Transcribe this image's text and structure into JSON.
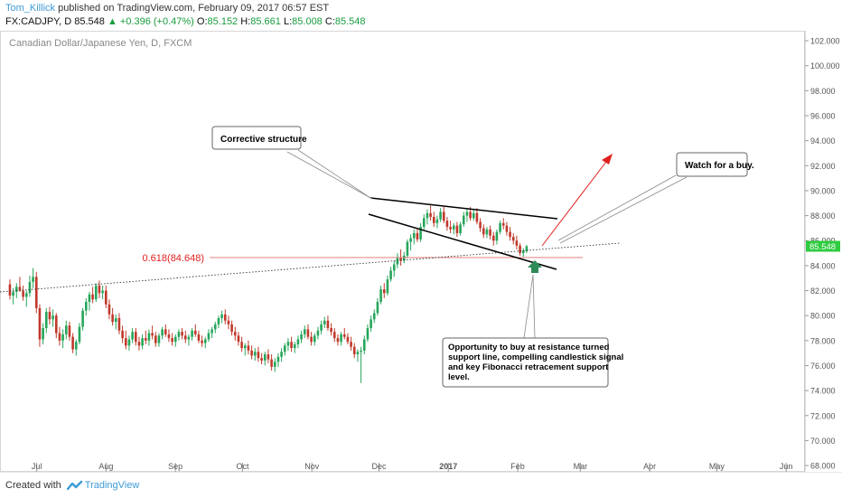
{
  "header": {
    "author": "Tom_Killick",
    "published_text": " published on TradingView.com, February 09, 2017 06:57 EST",
    "symbol": "FX:CADJPY, D",
    "last": "85.548",
    "change": "+0.396 (+0.47%)",
    "o_label": "O:",
    "o_value": "85.152",
    "h_label": "H:",
    "h_value": "85.661",
    "l_label": "L:",
    "l_value": "85.008",
    "c_label": "C:",
    "c_value": "85.548"
  },
  "chart_data": {
    "type": "candlestick",
    "title": "Canadian Dollar/Japanese Yen, D, FXCM",
    "ylim": [
      67.5,
      102.8
    ],
    "yticks": [
      "68.000",
      "70.000",
      "72.000",
      "74.000",
      "76.000",
      "78.000",
      "80.000",
      "82.000",
      "84.000",
      "86.000",
      "88.000",
      "90.000",
      "92.000",
      "94.000",
      "96.000",
      "98.000",
      "100.000",
      "102.000"
    ],
    "xticks": [
      {
        "label": "Jul",
        "day": 14
      },
      {
        "label": "Aug",
        "day": 45
      },
      {
        "label": "Sep",
        "day": 76
      },
      {
        "label": "Oct",
        "day": 106
      },
      {
        "label": "Nov",
        "day": 137
      },
      {
        "label": "Dec",
        "day": 167
      },
      {
        "label": "2017",
        "day": 198
      },
      {
        "label": "Feb",
        "day": 229
      },
      {
        "label": "Mar",
        "day": 257
      },
      {
        "label": "Apr",
        "day": 288
      },
      {
        "label": "May",
        "day": 318
      },
      {
        "label": "Jun",
        "day": 349
      }
    ],
    "xlim": [
      0,
      355
    ],
    "current_price": "85.548",
    "fib_level": {
      "label": "0.618(84.648)",
      "value": 84.648
    },
    "colors": {
      "up": "#26a65b",
      "down": "#c0392b",
      "fib": "#e06c6c",
      "arrow": "#e02020",
      "trend": "#000000"
    },
    "candles": [
      [
        82.5,
        82.9,
        81.3,
        81.6
      ],
      [
        81.6,
        82.2,
        80.9,
        81.9
      ],
      [
        81.9,
        82.6,
        81.4,
        82.3
      ],
      [
        82.3,
        83.1,
        81.9,
        82.0
      ],
      [
        82.0,
        82.4,
        81.2,
        81.5
      ],
      [
        81.5,
        82.0,
        80.7,
        81.8
      ],
      [
        81.8,
        83.2,
        81.5,
        82.7
      ],
      [
        82.7,
        83.8,
        82.2,
        83.1
      ],
      [
        83.1,
        83.5,
        80.2,
        80.6
      ],
      [
        80.6,
        80.9,
        77.5,
        78.1
      ],
      [
        78.1,
        79.4,
        77.7,
        79.0
      ],
      [
        79.0,
        80.6,
        78.6,
        80.3
      ],
      [
        80.3,
        80.7,
        79.3,
        79.7
      ],
      [
        79.7,
        80.5,
        79.1,
        80.0
      ],
      [
        80.0,
        80.2,
        78.2,
        78.6
      ],
      [
        78.6,
        79.1,
        77.6,
        78.0
      ],
      [
        78.0,
        78.9,
        77.4,
        78.5
      ],
      [
        78.5,
        79.6,
        78.1,
        79.2
      ],
      [
        79.2,
        79.5,
        78.0,
        78.3
      ],
      [
        78.3,
        78.6,
        77.0,
        77.3
      ],
      [
        77.3,
        78.1,
        76.8,
        77.9
      ],
      [
        77.9,
        79.4,
        77.7,
        79.1
      ],
      [
        79.1,
        80.6,
        78.8,
        80.4
      ],
      [
        80.4,
        81.4,
        80.0,
        81.1
      ],
      [
        81.1,
        81.9,
        80.4,
        81.7
      ],
      [
        81.7,
        82.3,
        81.0,
        81.3
      ],
      [
        81.3,
        82.6,
        81.1,
        82.4
      ],
      [
        82.4,
        82.8,
        81.4,
        81.8
      ],
      [
        81.8,
        82.4,
        81.3,
        82.0
      ],
      [
        82.0,
        82.4,
        80.6,
        80.9
      ],
      [
        80.9,
        81.3,
        79.7,
        80.1
      ],
      [
        80.1,
        80.6,
        79.2,
        79.5
      ],
      [
        79.5,
        80.1,
        78.9,
        79.8
      ],
      [
        79.8,
        80.2,
        78.5,
        78.8
      ],
      [
        78.8,
        79.2,
        77.8,
        78.2
      ],
      [
        78.2,
        78.8,
        77.3,
        77.6
      ],
      [
        77.6,
        78.4,
        77.2,
        78.1
      ],
      [
        78.1,
        79.0,
        77.8,
        78.7
      ],
      [
        78.7,
        79.0,
        77.6,
        77.9
      ],
      [
        77.9,
        78.3,
        77.2,
        77.6
      ],
      [
        77.6,
        78.5,
        77.3,
        78.2
      ],
      [
        78.2,
        78.8,
        77.7,
        78.0
      ],
      [
        78.0,
        78.9,
        77.6,
        78.6
      ],
      [
        78.6,
        79.2,
        78.1,
        78.4
      ],
      [
        78.4,
        78.7,
        77.5,
        77.8
      ],
      [
        77.8,
        78.6,
        77.5,
        78.4
      ],
      [
        78.4,
        79.1,
        78.1,
        78.9
      ],
      [
        78.9,
        79.3,
        78.3,
        78.5
      ],
      [
        78.5,
        78.9,
        77.9,
        78.2
      ],
      [
        78.2,
        78.6,
        77.6,
        77.9
      ],
      [
        77.9,
        78.5,
        77.5,
        78.3
      ],
      [
        78.3,
        78.9,
        78.0,
        78.7
      ],
      [
        78.7,
        79.0,
        78.1,
        78.4
      ],
      [
        78.4,
        78.8,
        77.8,
        78.1
      ],
      [
        78.1,
        78.5,
        77.6,
        78.3
      ],
      [
        78.3,
        79.0,
        78.0,
        78.8
      ],
      [
        78.8,
        79.3,
        78.3,
        78.5
      ],
      [
        78.5,
        78.8,
        77.8,
        78.0
      ],
      [
        78.0,
        78.4,
        77.5,
        77.8
      ],
      [
        77.8,
        78.3,
        77.4,
        78.1
      ],
      [
        78.1,
        78.9,
        77.9,
        78.6
      ],
      [
        78.6,
        79.1,
        78.2,
        78.9
      ],
      [
        78.9,
        79.5,
        78.6,
        79.3
      ],
      [
        79.3,
        80.0,
        79.0,
        79.8
      ],
      [
        79.8,
        80.4,
        79.4,
        80.1
      ],
      [
        80.1,
        80.5,
        79.3,
        79.6
      ],
      [
        79.6,
        80.0,
        78.9,
        79.3
      ],
      [
        79.3,
        79.6,
        78.4,
        78.7
      ],
      [
        78.7,
        79.1,
        78.0,
        78.4
      ],
      [
        78.4,
        78.7,
        77.6,
        77.9
      ],
      [
        77.9,
        78.3,
        77.1,
        77.4
      ],
      [
        77.4,
        77.8,
        76.8,
        77.6
      ],
      [
        77.6,
        78.0,
        76.9,
        77.2
      ],
      [
        77.2,
        77.6,
        76.5,
        76.8
      ],
      [
        76.8,
        77.4,
        76.4,
        77.1
      ],
      [
        77.1,
        77.5,
        76.3,
        76.6
      ],
      [
        76.6,
        77.0,
        76.1,
        76.4
      ],
      [
        76.4,
        77.1,
        76.0,
        76.9
      ],
      [
        76.9,
        77.3,
        76.2,
        76.5
      ],
      [
        76.5,
        76.9,
        75.6,
        75.9
      ],
      [
        75.9,
        76.6,
        75.5,
        76.3
      ],
      [
        76.3,
        77.0,
        75.9,
        76.7
      ],
      [
        76.7,
        77.4,
        76.3,
        77.1
      ],
      [
        77.1,
        77.8,
        76.8,
        77.6
      ],
      [
        77.6,
        78.2,
        77.2,
        77.9
      ],
      [
        77.9,
        78.3,
        77.1,
        77.4
      ],
      [
        77.4,
        77.9,
        77.0,
        77.7
      ],
      [
        77.7,
        78.4,
        77.4,
        78.1
      ],
      [
        78.1,
        78.8,
        77.8,
        78.5
      ],
      [
        78.5,
        79.2,
        78.2,
        78.9
      ],
      [
        78.9,
        79.3,
        78.1,
        78.3
      ],
      [
        78.3,
        78.7,
        77.6,
        77.9
      ],
      [
        77.9,
        78.6,
        77.6,
        78.4
      ],
      [
        78.4,
        79.1,
        78.1,
        78.8
      ],
      [
        78.8,
        79.6,
        78.5,
        79.3
      ],
      [
        79.3,
        79.9,
        79.0,
        79.6
      ],
      [
        79.6,
        80.0,
        78.8,
        79.0
      ],
      [
        79.0,
        79.4,
        78.4,
        78.7
      ],
      [
        78.7,
        79.0,
        77.9,
        78.2
      ],
      [
        78.2,
        78.5,
        77.6,
        77.9
      ],
      [
        77.9,
        78.7,
        77.6,
        78.5
      ],
      [
        78.5,
        79.0,
        78.1,
        78.3
      ],
      [
        78.3,
        78.6,
        77.7,
        77.9
      ],
      [
        77.9,
        78.3,
        77.2,
        77.5
      ],
      [
        77.5,
        77.8,
        76.6,
        76.9
      ],
      [
        76.9,
        77.3,
        76.3,
        77.1
      ],
      [
        77.1,
        77.5,
        74.6,
        77.2
      ],
      [
        77.2,
        78.4,
        76.9,
        78.1
      ],
      [
        78.1,
        79.3,
        77.9,
        79.0
      ],
      [
        79.0,
        80.0,
        78.7,
        79.7
      ],
      [
        79.7,
        80.5,
        79.4,
        80.2
      ],
      [
        80.2,
        81.4,
        80.0,
        81.1
      ],
      [
        81.1,
        82.4,
        80.9,
        82.1
      ],
      [
        82.1,
        82.6,
        81.4,
        81.8
      ],
      [
        81.8,
        83.2,
        81.6,
        82.9
      ],
      [
        82.9,
        83.9,
        82.7,
        83.6
      ],
      [
        83.6,
        84.4,
        83.1,
        84.1
      ],
      [
        84.1,
        85.0,
        83.8,
        84.6
      ],
      [
        84.6,
        85.3,
        84.0,
        84.4
      ],
      [
        84.4,
        85.1,
        84.2,
        84.8
      ],
      [
        84.8,
        86.1,
        84.6,
        85.9
      ],
      [
        85.9,
        86.5,
        85.2,
        86.2
      ],
      [
        86.2,
        86.9,
        85.7,
        86.6
      ],
      [
        86.6,
        86.9,
        85.9,
        86.1
      ],
      [
        86.1,
        87.4,
        85.9,
        87.1
      ],
      [
        87.1,
        88.1,
        86.9,
        87.8
      ],
      [
        87.8,
        88.5,
        87.3,
        88.2
      ],
      [
        88.2,
        88.8,
        87.6,
        87.9
      ],
      [
        87.9,
        88.3,
        87.1,
        87.4
      ],
      [
        87.4,
        88.0,
        87.0,
        87.7
      ],
      [
        87.7,
        88.6,
        87.5,
        88.3
      ],
      [
        88.3,
        88.7,
        87.4,
        87.6
      ],
      [
        87.6,
        87.9,
        86.8,
        87.1
      ],
      [
        87.1,
        87.6,
        86.6,
        86.9
      ],
      [
        86.9,
        87.4,
        86.5,
        87.2
      ],
      [
        87.2,
        87.5,
        86.3,
        86.6
      ],
      [
        86.6,
        87.5,
        86.4,
        87.3
      ],
      [
        87.3,
        88.3,
        87.1,
        88.0
      ],
      [
        88.0,
        88.6,
        87.5,
        88.3
      ],
      [
        88.3,
        88.7,
        87.6,
        87.8
      ],
      [
        87.8,
        88.5,
        87.6,
        88.2
      ],
      [
        88.2,
        88.6,
        87.3,
        87.5
      ],
      [
        87.5,
        87.8,
        86.7,
        87.0
      ],
      [
        87.0,
        87.3,
        86.2,
        86.5
      ],
      [
        86.5,
        87.1,
        86.2,
        86.9
      ],
      [
        86.9,
        87.2,
        86.1,
        86.4
      ],
      [
        86.4,
        86.7,
        85.6,
        86.0
      ],
      [
        86.0,
        86.9,
        85.7,
        86.7
      ],
      [
        86.7,
        87.6,
        86.5,
        87.4
      ],
      [
        87.4,
        87.8,
        86.9,
        87.2
      ],
      [
        87.2,
        87.5,
        86.4,
        86.7
      ],
      [
        86.7,
        87.1,
        86.0,
        86.3
      ],
      [
        86.3,
        86.6,
        85.7,
        86.0
      ],
      [
        86.0,
        86.4,
        85.3,
        85.6
      ],
      [
        85.6,
        85.8,
        84.8,
        85.0
      ],
      [
        85.0,
        85.4,
        84.7,
        85.2
      ],
      [
        85.152,
        85.661,
        85.008,
        85.548
      ]
    ],
    "annotations": [
      {
        "id": "corrective",
        "text": "Corrective structure"
      },
      {
        "id": "watch",
        "text": "Watch for a buy."
      },
      {
        "id": "opportunity",
        "lines": [
          "Opportunity to buy at resistance turned",
          "support line, compelling candlestick signal",
          "and key Fibonacci retracement support",
          "level."
        ]
      }
    ]
  },
  "footer": {
    "created_with": "Created with",
    "brand": "TradingView"
  }
}
